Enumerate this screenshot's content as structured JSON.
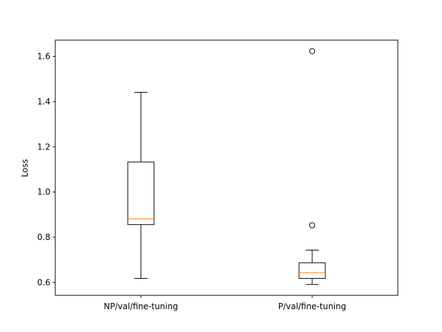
{
  "chart_data": {
    "type": "box",
    "title": "",
    "xlabel": "",
    "ylabel": "Loss",
    "ylim": [
      0.543,
      1.672
    ],
    "yticks": [
      0.6,
      0.8,
      1.0,
      1.2,
      1.4,
      1.6
    ],
    "ytick_labels": [
      "0.6",
      "0.8",
      "1.0",
      "1.2",
      "1.4",
      "1.6"
    ],
    "grid": false,
    "categories": [
      "NP/val/fine-tuning",
      "P/val/fine-tuning"
    ],
    "boxes": [
      {
        "category": "NP/val/fine-tuning",
        "whisker_low": 0.618,
        "q1": 0.856,
        "median": 0.881,
        "q3": 1.133,
        "whisker_high": 1.441,
        "outliers": []
      },
      {
        "category": "P/val/fine-tuning",
        "whisker_low": 0.591,
        "q1": 0.618,
        "median": 0.643,
        "q3": 0.687,
        "whisker_high": 0.743,
        "outliers": [
          0.853,
          1.623
        ]
      }
    ],
    "colors": {
      "box": "#000000",
      "median": "#ff7f0e",
      "background": "#ffffff"
    }
  }
}
